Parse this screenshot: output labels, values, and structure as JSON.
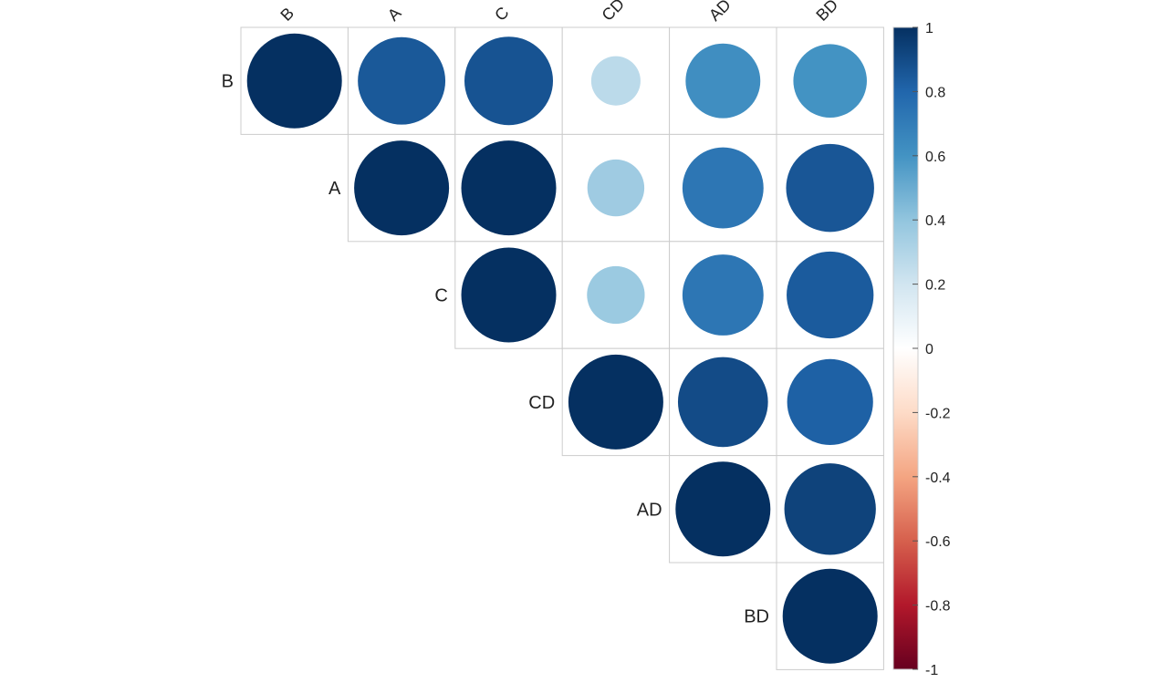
{
  "chart_data": {
    "type": "heatmap",
    "subtype": "correlation-matrix-upper-circles",
    "variables": [
      "B",
      "A",
      "C",
      "CD",
      "AD",
      "BD"
    ],
    "matrix": [
      [
        1.0,
        0.85,
        0.87,
        0.27,
        0.62,
        0.6
      ],
      [
        null,
        1.0,
        1.0,
        0.36,
        0.73,
        0.86
      ],
      [
        null,
        null,
        1.0,
        0.37,
        0.73,
        0.84
      ],
      [
        null,
        null,
        null,
        1.0,
        0.9,
        0.82
      ],
      [
        null,
        null,
        null,
        null,
        1.0,
        0.93
      ],
      [
        null,
        null,
        null,
        null,
        null,
        1.0
      ]
    ],
    "colorbar": {
      "range": [
        -1,
        1
      ],
      "ticks": [
        "1",
        "0.8",
        "0.6",
        "0.4",
        "0.2",
        "0",
        "-0.2",
        "-0.4",
        "-0.6",
        "-0.8",
        "-1"
      ],
      "palette": [
        "#67001F",
        "#B2182B",
        "#D6604D",
        "#F4A582",
        "#FDDBC7",
        "#FFFFFF",
        "#D1E5F0",
        "#92C5DE",
        "#4393C3",
        "#2166AC",
        "#053061"
      ]
    },
    "grid": true,
    "legend_position": "right"
  }
}
